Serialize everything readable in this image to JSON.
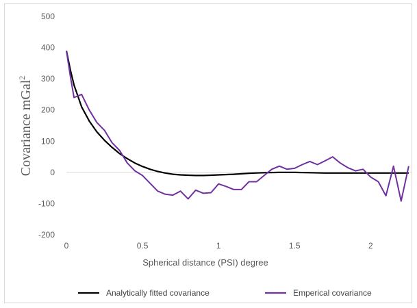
{
  "chart_data": {
    "type": "line",
    "title": "",
    "xlabel": "Spherical distance (PSI) degree",
    "ylabel": "Covariance mGal",
    "ylabel_superscript": "2",
    "xlim": [
      0,
      2.27
    ],
    "ylim": [
      -200,
      500
    ],
    "x_ticks": [
      0,
      0.5,
      1,
      1.5,
      2
    ],
    "x_tick_labels": [
      "0",
      "0.5",
      "1",
      "1.5",
      "2"
    ],
    "y_ticks": [
      -200,
      -100,
      0,
      100,
      200,
      300,
      400,
      500
    ],
    "y_tick_labels": [
      "-200",
      "-100",
      "0",
      "100",
      "200",
      "300",
      "400",
      "500"
    ],
    "grid": false,
    "legend_position": "bottom",
    "series": [
      {
        "name": "Analytically fitted covariance",
        "color": "#000000",
        "x": [
          0,
          0.025,
          0.05,
          0.075,
          0.1,
          0.15,
          0.2,
          0.25,
          0.3,
          0.35,
          0.4,
          0.45,
          0.5,
          0.55,
          0.6,
          0.65,
          0.7,
          0.75,
          0.8,
          0.85,
          0.9,
          0.95,
          1.0,
          1.1,
          1.2,
          1.3,
          1.4,
          1.5,
          1.6,
          1.7,
          1.8,
          1.9,
          2.0,
          2.1,
          2.2,
          2.25
        ],
        "y": [
          390,
          330,
          280,
          245,
          210,
          165,
          130,
          103,
          80,
          60,
          44,
          30,
          19,
          10,
          3,
          -2,
          -6,
          -8,
          -9,
          -10,
          -10,
          -9,
          -8,
          -6,
          -3,
          -1,
          0,
          0,
          -1,
          -2,
          -2,
          -2,
          -2,
          -2,
          -2,
          -2
        ]
      },
      {
        "name": "Emperical covariance",
        "color": "#7030a0",
        "x": [
          0,
          0.025,
          0.05,
          0.075,
          0.1,
          0.15,
          0.2,
          0.25,
          0.3,
          0.35,
          0.4,
          0.45,
          0.5,
          0.55,
          0.6,
          0.65,
          0.7,
          0.75,
          0.8,
          0.85,
          0.9,
          0.95,
          1.0,
          1.05,
          1.1,
          1.15,
          1.2,
          1.25,
          1.3,
          1.35,
          1.4,
          1.45,
          1.5,
          1.55,
          1.6,
          1.65,
          1.7,
          1.75,
          1.8,
          1.85,
          1.9,
          1.95,
          2.0,
          2.05,
          2.1,
          2.15,
          2.2,
          2.25
        ],
        "y": [
          390,
          310,
          240,
          245,
          250,
          200,
          160,
          135,
          95,
          70,
          30,
          5,
          -10,
          -35,
          -60,
          -70,
          -73,
          -60,
          -85,
          -57,
          -67,
          -65,
          -37,
          -45,
          -55,
          -55,
          -30,
          -30,
          -10,
          10,
          20,
          10,
          13,
          25,
          35,
          25,
          37,
          50,
          30,
          15,
          5,
          10,
          -15,
          -30,
          -75,
          20,
          -92,
          20
        ]
      }
    ]
  }
}
